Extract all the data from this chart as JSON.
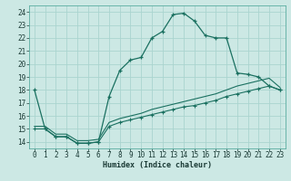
{
  "xlabel": "Humidex (Indice chaleur)",
  "bg_color": "#cce8e4",
  "grid_color": "#aad4cf",
  "line_color": "#1a7060",
  "xlim": [
    -0.5,
    23.5
  ],
  "ylim": [
    13.5,
    24.5
  ],
  "xticks": [
    0,
    1,
    2,
    3,
    4,
    5,
    6,
    7,
    8,
    9,
    10,
    11,
    12,
    13,
    14,
    15,
    16,
    17,
    18,
    19,
    20,
    21,
    22,
    23
  ],
  "yticks": [
    14,
    15,
    16,
    17,
    18,
    19,
    20,
    21,
    22,
    23,
    24
  ],
  "curve1_x": [
    0,
    1,
    2,
    3,
    4,
    5,
    6,
    7,
    8,
    9,
    10,
    11,
    12,
    13,
    14,
    15,
    16,
    17,
    18,
    19,
    20,
    21,
    22,
    23
  ],
  "curve1_y": [
    18,
    15,
    14.4,
    14.4,
    13.9,
    13.9,
    14.0,
    17.5,
    19.5,
    20.3,
    20.5,
    22.0,
    22.5,
    23.8,
    23.9,
    23.3,
    22.2,
    22.0,
    22.0,
    19.3,
    19.2,
    19.0,
    18.3,
    18.0
  ],
  "curve2_x": [
    0,
    1,
    2,
    3,
    4,
    5,
    6,
    7,
    8,
    9,
    10,
    11,
    12,
    13,
    14,
    15,
    16,
    17,
    18,
    19,
    20,
    21,
    22,
    23
  ],
  "curve2_y": [
    15.0,
    15.0,
    14.4,
    14.4,
    13.9,
    13.9,
    14.0,
    15.2,
    15.5,
    15.7,
    15.9,
    16.1,
    16.3,
    16.5,
    16.7,
    16.8,
    17.0,
    17.2,
    17.5,
    17.7,
    17.9,
    18.1,
    18.3,
    18.0
  ],
  "curve3_x": [
    0,
    1,
    2,
    3,
    4,
    5,
    6,
    7,
    8,
    9,
    10,
    11,
    12,
    13,
    14,
    15,
    16,
    17,
    18,
    19,
    20,
    21,
    22,
    23
  ],
  "curve3_y": [
    15.2,
    15.2,
    14.6,
    14.6,
    14.1,
    14.1,
    14.2,
    15.5,
    15.8,
    16.0,
    16.2,
    16.5,
    16.7,
    16.9,
    17.1,
    17.3,
    17.5,
    17.7,
    18.0,
    18.3,
    18.5,
    18.7,
    18.9,
    18.2
  ]
}
